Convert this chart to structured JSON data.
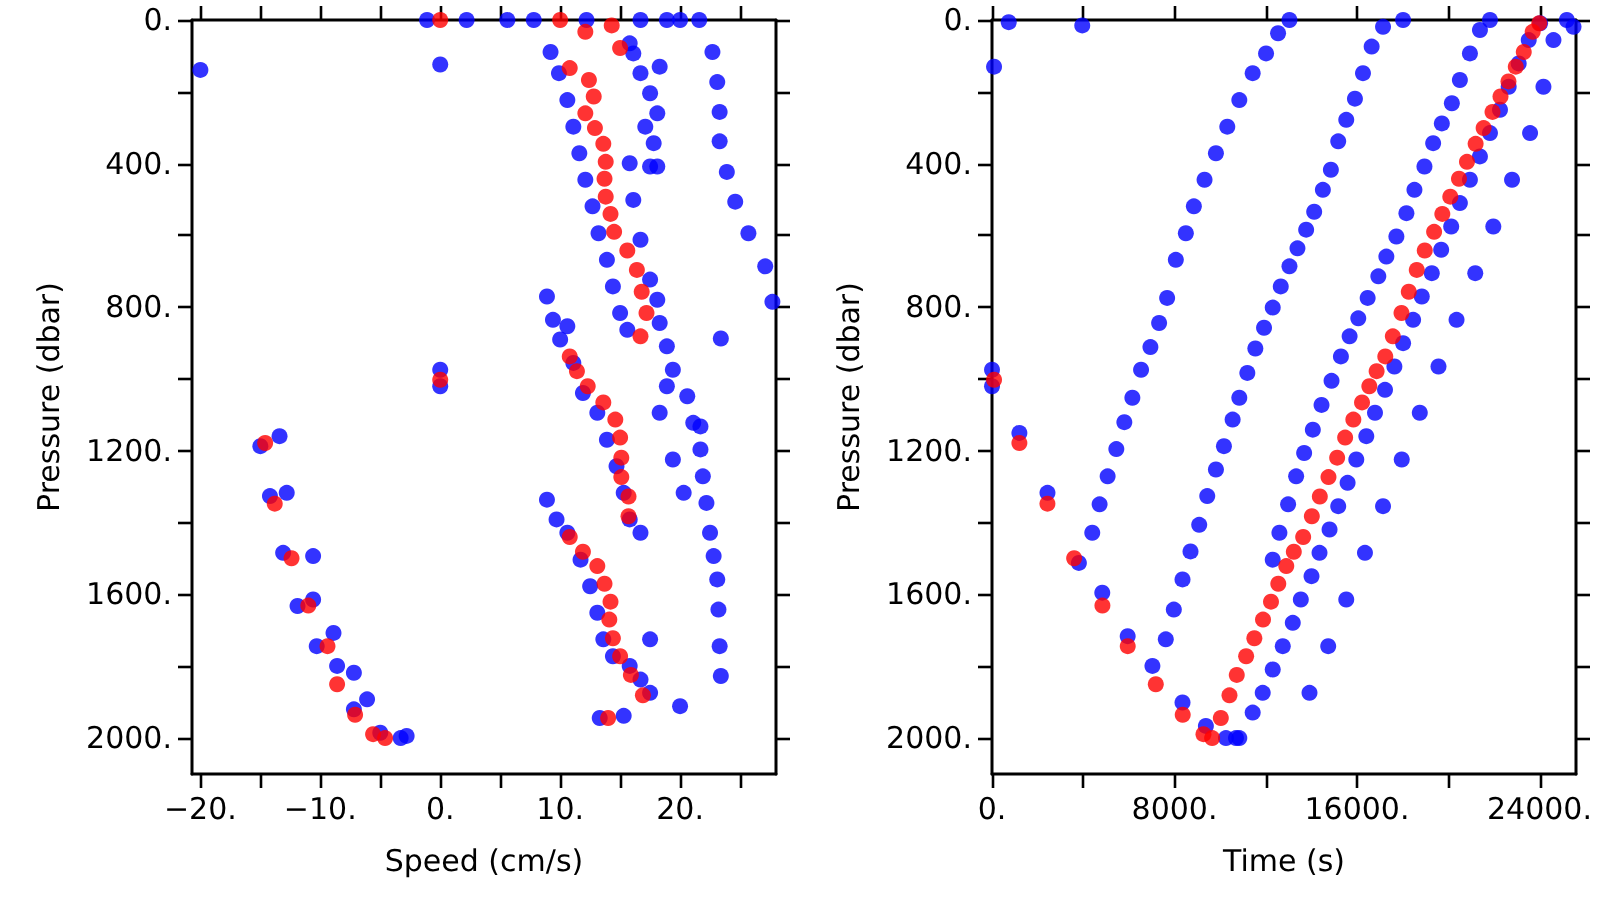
{
  "chart_data": [
    {
      "type": "scatter",
      "xlabel": "Speed (cm/s)",
      "ylabel": "Pressure (dbar)",
      "marker": "circle",
      "grid": false,
      "xlim": [
        -20.7,
        28
      ],
      "ylim": [
        2100,
        0
      ],
      "xticks": [
        {
          "value": -20,
          "label": "−20."
        },
        {
          "value": -15,
          "label": null
        },
        {
          "value": -10,
          "label": "−10."
        },
        {
          "value": -5,
          "label": null
        },
        {
          "value": 0,
          "label": "0."
        },
        {
          "value": 5,
          "label": null
        },
        {
          "value": 10,
          "label": "10."
        },
        {
          "value": 15,
          "label": null
        },
        {
          "value": 20,
          "label": "20."
        },
        {
          "value": 25,
          "label": null
        }
      ],
      "yticks": [
        {
          "value": 0,
          "label": "0."
        },
        {
          "value": 200,
          "label": null
        },
        {
          "value": 400,
          "label": "400."
        },
        {
          "value": 600,
          "label": null
        },
        {
          "value": 800,
          "label": "800."
        },
        {
          "value": 1000,
          "label": null
        },
        {
          "value": 1200,
          "label": "1200."
        },
        {
          "value": 1400,
          "label": null
        },
        {
          "value": 1600,
          "label": "1600."
        },
        {
          "value": 1800,
          "label": null
        },
        {
          "value": 2000,
          "label": "2000."
        }
      ],
      "series": [
        {
          "color": "#0000ff",
          "x": [
            -1.1,
            2.2,
            5.6,
            7.8,
            12.2,
            16.7,
            18.9,
            20,
            21.6,
            -20,
            0,
            0,
            0,
            22.7,
            23.1,
            23.3,
            23.3,
            23.9,
            24.6,
            25.7,
            27.1,
            27.7,
            23.4,
            16.1,
            16.7,
            17.5,
            18.1,
            17.1,
            17.8,
            17.5,
            18.1,
            15.8,
            18.3,
            9.2,
            9.9,
            10.6,
            11.1,
            11.6,
            12.1,
            12.7,
            13.2,
            13.9,
            14.4,
            15,
            15.6,
            15.8,
            16.1,
            16.7,
            17.5,
            18.1,
            18.3,
            18.9,
            19.4,
            20.6,
            21.1,
            21.7,
            21.9,
            22.2,
            22.5,
            22.8,
            23.1,
            23.2,
            23.3,
            23.4,
            20,
            17.5,
            21.7,
            18.9,
            18.3,
            19.4,
            20.3,
            8.9,
            9.4,
            10,
            11.1,
            11.9,
            13.1,
            13.9,
            14.7,
            15.3,
            15.8,
            16.7,
            10.6,
            8.9,
            9.7,
            10.6,
            11.7,
            12.5,
            13.1,
            13.6,
            14.4,
            15.8,
            16.7,
            17.5,
            15.3,
            13.3,
            -15,
            -13.4,
            -14.2,
            -12.8,
            -13.1,
            -10.6,
            -11.9,
            -10.6,
            -10.3,
            -8.9,
            -8.6,
            -7.2,
            -7.2,
            -6.1,
            -5,
            -3.3,
            -2.8
          ],
          "values": [
            0,
            0,
            0,
            0,
            0,
            0,
            0,
            0,
            0,
            139,
            124,
            974,
            1020,
            89,
            173,
            256,
            338,
            423,
            506,
            594,
            686,
            785,
            887,
            93,
            148,
            204,
            260,
            297,
            343,
            408,
            408,
            65,
            130,
            89,
            148,
            223,
            297,
            371,
            445,
            519,
            594,
            668,
            742,
            816,
            863,
            399,
            501,
            612,
            723,
            779,
            844,
            909,
            974,
            1048,
            1122,
            1196,
            1271,
            1345,
            1428,
            1493,
            1558,
            1642,
            1744,
            1827,
            1911,
            1725,
            1132,
            1020,
            1094,
            1224,
            1317,
            770,
            835,
            890,
            955,
            1039,
            1094,
            1169,
            1243,
            1317,
            1391,
            1428,
            853,
            1336,
            1391,
            1428,
            1503,
            1577,
            1651,
            1725,
            1772,
            1799,
            1837,
            1874,
            1938,
            1944,
            1187,
            1159,
            1326,
            1317,
            1484,
            1493,
            1632,
            1614,
            1744,
            1707,
            1799,
            1818,
            1920,
            1892,
            1985,
            2000,
            1994
          ]
        },
        {
          "color": "#ff0000",
          "x": [
            0,
            10,
            12.1,
            14.3,
            15,
            10.8,
            12.4,
            12.8,
            12.1,
            12.9,
            13.6,
            13.8,
            13.7,
            13.8,
            14.2,
            14.5,
            15.6,
            16.4,
            16.8,
            17.2,
            16.7,
            0,
            -14.6,
            -13.8,
            -12.4,
            -11,
            -9.4,
            -8.6,
            -7.1,
            -5.6,
            -4.6,
            10.8,
            11.4,
            12.3,
            13.6,
            14.6,
            15,
            15.1,
            15.1,
            15.7,
            15.7,
            10.8,
            11.9,
            13.1,
            13.7,
            14.2,
            14.1,
            14.4,
            15,
            15.9,
            16.9,
            14
          ],
          "values": [
            0,
            0,
            33,
            15,
            78,
            134,
            167,
            213,
            260,
            301,
            345,
            395,
            442,
            492,
            540,
            590,
            642,
            696,
            757,
            816,
            881,
            1002,
            1178,
            1347,
            1499,
            1631,
            1744,
            1850,
            1935,
            1989,
            2000,
            937,
            978,
            1020,
            1065,
            1113,
            1163,
            1219,
            1273,
            1327,
            1382,
            1440,
            1481,
            1521,
            1570,
            1620,
            1670,
            1722,
            1772,
            1824,
            1881,
            1944
          ]
        }
      ]
    },
    {
      "type": "scatter",
      "xlabel": "Time (s)",
      "ylabel": "Pressure (dbar)",
      "marker": "circle",
      "grid": false,
      "xlim": [
        0,
        25600
      ],
      "ylim": [
        2100,
        0
      ],
      "xticks": [
        {
          "value": 0,
          "label": "0."
        },
        {
          "value": 4000,
          "label": null
        },
        {
          "value": 8000,
          "label": "8000."
        },
        {
          "value": 12000,
          "label": null
        },
        {
          "value": 16000,
          "label": "16000."
        },
        {
          "value": 20000,
          "label": null
        },
        {
          "value": 24000,
          "label": "24000."
        }
      ],
      "yticks": [
        {
          "value": 0,
          "label": "0."
        },
        {
          "value": 200,
          "label": null
        },
        {
          "value": 400,
          "label": "400."
        },
        {
          "value": 600,
          "label": null
        },
        {
          "value": 800,
          "label": "800."
        },
        {
          "value": 1000,
          "label": null
        },
        {
          "value": 1200,
          "label": "1200."
        },
        {
          "value": 1400,
          "label": null
        },
        {
          "value": 1600,
          "label": "1600."
        },
        {
          "value": 1800,
          "label": null
        },
        {
          "value": 2000,
          "label": "2000."
        }
      ],
      "series": [
        {
          "color": "#0000ff",
          "x": [
            4395,
            4717,
            5069,
            5450,
            5801,
            6153,
            6534,
            6944,
            7325,
            7677,
            8058,
            8497,
            8849,
            9317,
            9816,
            10314,
            10841,
            11427,
            12013,
            12540,
            13039,
            7618,
            7970,
            8351,
            8702,
            9083,
            9435,
            9816,
            10167,
            10548,
            10841,
            11193,
            11544,
            11925,
            12306,
            12658,
            13039,
            13390,
            13771,
            14123,
            14504,
            14855,
            15177,
            15529,
            15910,
            16262,
            16642,
            17141,
            18020,
            12306,
            12599,
            12980,
            13332,
            13683,
            14064,
            14445,
            14884,
            15295,
            15676,
            16056,
            16467,
            16935,
            17287,
            17727,
            18166,
            18518,
            18957,
            19338,
            19719,
            20158,
            20510,
            20950,
            21389,
            21829,
            90,
            0,
            0,
            1201,
            2432,
            3809,
            4834,
            5948,
            7032,
            8351,
            9376,
            10255,
            10695,
            733,
            3956,
            10841,
            11427,
            11867,
            12306,
            12746,
            13185,
            13537,
            14006,
            14357,
            14797,
            15177,
            15588,
            15969,
            16408,
            16789,
            17228,
            17639,
            18020,
            18459,
            18840,
            19279,
            19690,
            20129,
            20510,
            20950,
            21389,
            21829,
            22268,
            22649,
            23088,
            23528,
            24026,
            24612,
            24173,
            23587,
            22796,
            21975,
            21184,
            20364,
            19572,
            18752,
            17961,
            17141,
            16349,
            15529,
            14738,
            13918,
            25198,
            25491
          ],
          "values": [
            1428,
            1349,
            1271,
            1195,
            1120,
            1052,
            974,
            911,
            844,
            774,
            668,
            594,
            519,
            445,
            371,
            297,
            223,
            148,
            93,
            37,
            0,
            1725,
            1642,
            1558,
            1480,
            1406,
            1326,
            1252,
            1187,
            1113,
            1052,
            983,
            915,
            857,
            801,
            742,
            686,
            636,
            584,
            534,
            473,
            417,
            338,
            278,
            219,
            148,
            74,
            19,
            0,
            1503,
            1428,
            1349,
            1271,
            1206,
            1141,
            1072,
            1005,
            937,
            881,
            831,
            774,
            714,
            659,
            603,
            538,
            473,
            408,
            343,
            288,
            232,
            167,
            93,
            28,
            0,
            130,
            974,
            1020,
            1150,
            1317,
            1512,
            1595,
            1716,
            1799,
            1901,
            1966,
            2000,
            2000,
            6,
            15,
            2000,
            1929,
            1874,
            1809,
            1744,
            1679,
            1614,
            1549,
            1484,
            1419,
            1354,
            1289,
            1224,
            1159,
            1094,
            1030,
            965,
            900,
            835,
            770,
            705,
            640,
            575,
            510,
            445,
            380,
            315,
            250,
            186,
            121,
            56,
            9,
            56,
            186,
            315,
            445,
            575,
            705,
            835,
            965,
            1094,
            1224,
            1354,
            1484,
            1614,
            1744,
            1874,
            0,
            19
          ]
        },
        {
          "color": "#ff0000",
          "x": [
            90,
            1200,
            2430,
            3600,
            4840,
            5950,
            7180,
            8360,
            9270,
            9650,
            10030,
            10410,
            10730,
            11140,
            11500,
            11880,
            12230,
            12550,
            12900,
            13230,
            13640,
            14020,
            14370,
            14750,
            15130,
            15480,
            15840,
            16220,
            16540,
            16860,
            17240,
            17570,
            17950,
            18270,
            18620,
            18970,
            19380,
            19740,
            20090,
            20470,
            20820,
            21200,
            21550,
            21940,
            22290,
            22640,
            22960,
            23310,
            23700,
            23990
          ],
          "values": [
            1002,
            1178,
            1347,
            1499,
            1631,
            1744,
            1850,
            1935,
            1989,
            2000,
            1944,
            1881,
            1824,
            1772,
            1722,
            1670,
            1620,
            1570,
            1521,
            1481,
            1440,
            1382,
            1327,
            1273,
            1219,
            1163,
            1113,
            1065,
            1020,
            978,
            937,
            881,
            816,
            757,
            696,
            642,
            590,
            540,
            492,
            442,
            395,
            345,
            301,
            256,
            213,
            171,
            130,
            89,
            33,
            9
          ]
        }
      ]
    }
  ]
}
